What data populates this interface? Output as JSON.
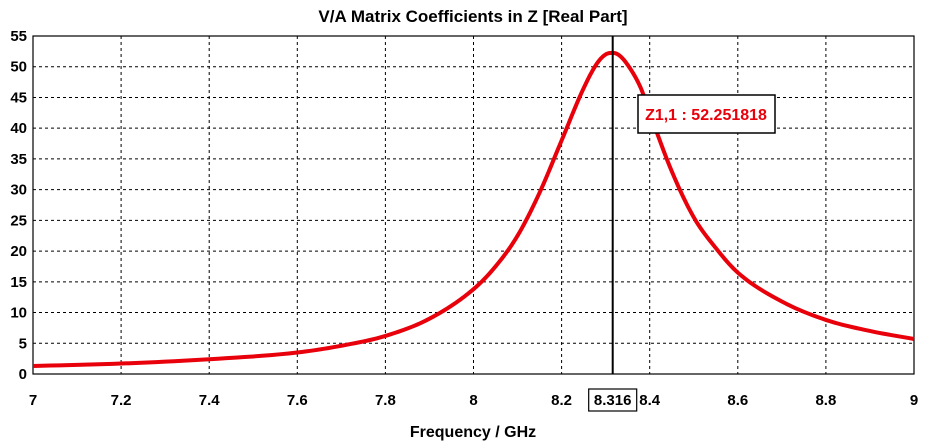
{
  "chart_data": {
    "type": "line",
    "title": "V/A Matrix Coefficients in Z [Real Part]",
    "xlabel": "Frequency / GHz",
    "ylabel": "",
    "xlim": [
      7,
      9
    ],
    "ylim": [
      0,
      55
    ],
    "xticks": [
      "7",
      "7.2",
      "7.4",
      "7.6",
      "7.8",
      "8",
      "8.2",
      "8.4",
      "8.6",
      "8.8",
      "9"
    ],
    "yticks": [
      "0",
      "5",
      "10",
      "15",
      "20",
      "25",
      "30",
      "35",
      "40",
      "45",
      "50",
      "55"
    ],
    "grid": true,
    "series": [
      {
        "name": "Z1,1",
        "color": "#e8000b",
        "x": [
          7.0,
          7.2,
          7.4,
          7.6,
          7.7,
          7.8,
          7.9,
          8.0,
          8.05,
          8.1,
          8.15,
          8.2,
          8.25,
          8.28,
          8.3,
          8.316,
          8.33,
          8.35,
          8.38,
          8.4,
          8.45,
          8.5,
          8.55,
          8.6,
          8.7,
          8.8,
          8.9,
          9.0
        ],
        "y": [
          1.3,
          1.7,
          2.4,
          3.5,
          4.6,
          6.2,
          9.0,
          13.8,
          17.5,
          22.5,
          29.5,
          38.0,
          46.5,
          50.5,
          52.0,
          52.25,
          51.9,
          50.3,
          46.5,
          42.5,
          33.0,
          25.5,
          20.5,
          16.5,
          11.8,
          8.8,
          7.0,
          5.7
        ]
      }
    ],
    "marker": {
      "x": 8.316,
      "x_label": "8.316",
      "label": "Z1,1 : 52.251818",
      "color": "#e8000b"
    }
  }
}
